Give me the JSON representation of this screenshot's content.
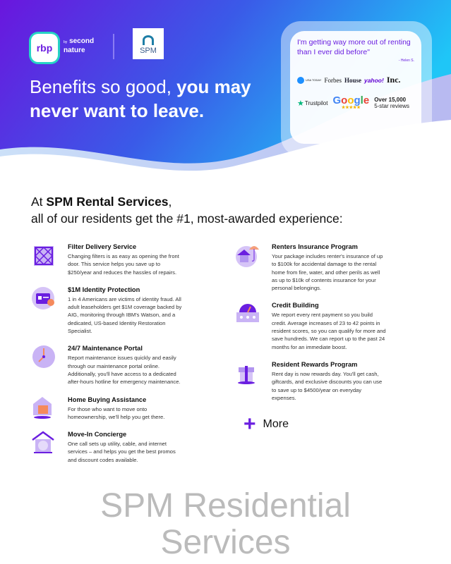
{
  "header": {
    "rbp_logo": "rbp",
    "by": "by",
    "brand": "second nature",
    "spm_logo": "SPM",
    "headline_light": "Benefits so good, ",
    "headline_bold": "you may never want to leave."
  },
  "testimonial": {
    "quote": "I'm getting way more out of renting than I ever did before\"",
    "author": "- Helen S.",
    "press": [
      "USA TODAY",
      "Forbes",
      "House",
      "yahoo!",
      "Inc."
    ],
    "trustpilot": "Trustpilot",
    "google": "Google",
    "stars": "★★★★★",
    "reviews_count": "Over 15,000",
    "reviews_label": "5-star reviews"
  },
  "section": {
    "line1_prefix": "At ",
    "company": "SPM Rental Services",
    "line1_suffix": ",",
    "line2": "all of our residents get the #1, most-awarded experience:"
  },
  "benefits": [
    {
      "title": "Filter Delivery Service",
      "text": "Changing filters is as easy as opening the front door. This service helps you save up to $250/year and reduces the hassles of repairs.",
      "icon": "filter-icon"
    },
    {
      "title": "$1M Identity Protection",
      "text": "1 in 4 Americans are victims of identity fraud. All adult leaseholders get $1M coverage backed by AIG, monitoring through IBM's Watson, and a dedicated, US-based Identity Restoration Specialist.",
      "icon": "id-card-icon"
    },
    {
      "title": "24/7 Maintenance Portal",
      "text": "Report maintenance issues quickly and easily through our maintenance portal online. Additionally, you'll have access to a dedicated after-hours hotline for emergency maintenance.",
      "icon": "clock-icon"
    },
    {
      "title": "Home Buying Assistance",
      "text": "For those who want to move onto homeownership, we'll help you get there.",
      "icon": "home-calendar-icon"
    },
    {
      "title": "Move-In Concierge",
      "text": "One call sets up utility, cable, and internet services – and helps you get the best promos and discount codes available.",
      "icon": "house-utilities-icon"
    },
    {
      "title": "Renters Insurance Program",
      "text": "Your package includes renter's insurance of up to $100k for accidental damage to the rental home from fire, water, and other perils as well as up to $10k of contents insurance for your personal belongings.",
      "icon": "umbrella-house-icon"
    },
    {
      "title": "Credit Building",
      "text": "We report every rent payment so you build credit. Average increases of 23 to 42 points in resident scores, so you can qualify for more and save hundreds. We can report up to the past 24 months for an immediate boost.",
      "icon": "credit-gauge-icon"
    },
    {
      "title": "Resident Rewards Program",
      "text": "Rent day is now rewards day. You'll get cash, giftcards, and exclusive discounts you can use to save up to $4500/year on everyday expenses.",
      "icon": "gift-icon"
    }
  ],
  "more_label": "More",
  "watermark": {
    "line1": "SPM Residential",
    "line2": "Services"
  },
  "colors": {
    "purple": "#6a1ee0",
    "blue": "#2f6ee8",
    "cyan": "#1fc8f5",
    "orange": "#f58a5c"
  }
}
